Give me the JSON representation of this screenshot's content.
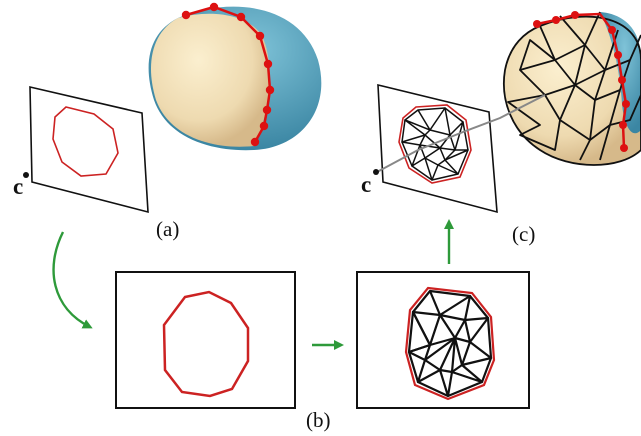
{
  "labels": {
    "a": "(a)",
    "b": "(b)",
    "c": "(c)",
    "camera_left": "c",
    "camera_right": "c"
  },
  "colors": {
    "boundary": "#cc2222",
    "mesh": "#111111",
    "arrow": "#2e9a3a",
    "skin": "#f2dcaa",
    "shadow": "#4d9cb8"
  }
}
